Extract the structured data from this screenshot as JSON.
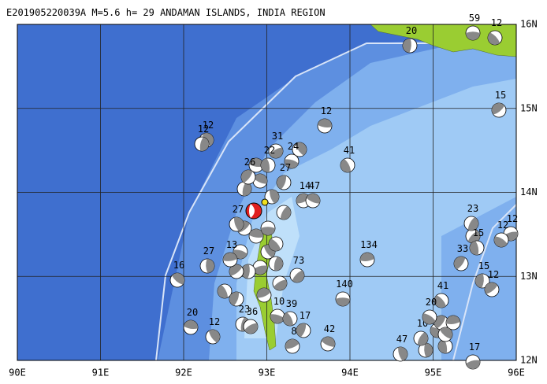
{
  "title": "E201905220039A M=5.6 h= 29 ANDAMAN ISLANDS, INDIA REGION",
  "lon_labels": [
    "90E",
    "91E",
    "92E",
    "93E",
    "94E",
    "95E",
    "96E"
  ],
  "lat_labels": [
    "16N",
    "15N",
    "14N",
    "13N",
    "12N"
  ],
  "events": [
    {
      "depth": 59
    },
    {
      "depth": 12
    },
    {
      "depth": 20
    },
    {
      "depth": 15
    },
    {
      "depth": 12
    },
    {
      "depth": 12
    },
    {
      "depth": 12
    },
    {
      "depth": 31
    },
    {
      "depth": 24
    },
    {
      "depth": 41
    },
    {
      "depth": 27
    },
    {
      "depth": 14
    },
    {
      "depth": 47
    },
    {
      "depth": 27
    },
    {
      "depth": 23
    },
    {
      "depth": 12
    },
    {
      "depth": 12
    },
    {
      "depth": 15
    },
    {
      "depth": 33
    },
    {
      "depth": 134
    },
    {
      "depth": 16
    },
    {
      "depth": 27
    },
    {
      "depth": 73
    },
    {
      "depth": 140
    },
    {
      "depth": 41
    },
    {
      "depth": 15
    },
    {
      "depth": 12
    },
    {
      "depth": 20
    },
    {
      "depth": 12
    },
    {
      "depth": 23
    },
    {
      "depth": 36
    },
    {
      "depth": 10
    },
    {
      "depth": 39
    },
    {
      "depth": 17
    },
    {
      "depth": 8
    },
    {
      "depth": 42
    },
    {
      "depth": 47
    },
    {
      "depth": 10
    },
    {
      "depth": 17
    },
    {
      "depth": 20
    },
    {
      "depth": 22
    },
    {
      "depth": 26
    },
    {
      "depth": 13
    }
  ]
}
